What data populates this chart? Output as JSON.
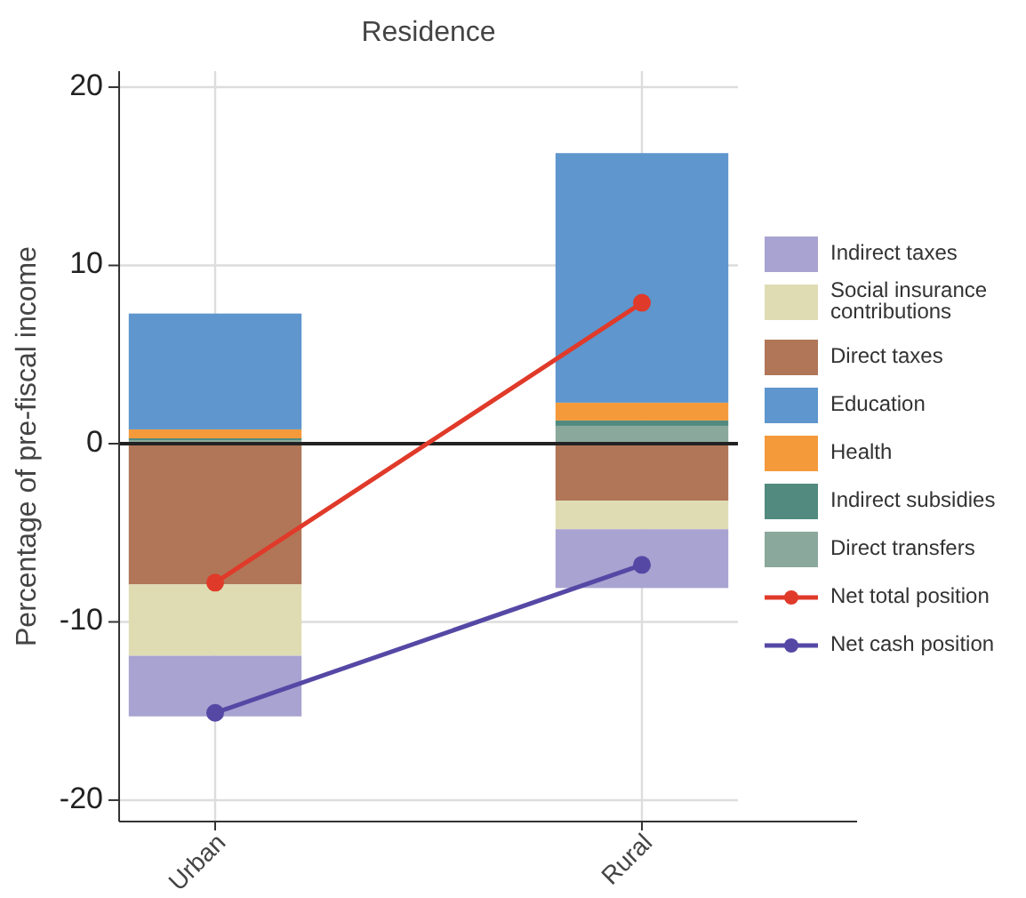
{
  "chart_data": {
    "type": "bar",
    "stacked": true,
    "title": "Residence",
    "ylabel": "Percentage of pre-fiscal income",
    "categories": [
      "Urban",
      "Rural"
    ],
    "series": [
      {
        "name": "Direct transfers",
        "color": "#8aa89b",
        "values": [
          0.2,
          1.0
        ]
      },
      {
        "name": "Indirect subsidies",
        "color": "#528a80",
        "values": [
          0.1,
          0.3
        ]
      },
      {
        "name": "Health",
        "color": "#f59a3b",
        "values": [
          0.5,
          1.0
        ]
      },
      {
        "name": "Education",
        "color": "#5e96cd",
        "values": [
          6.5,
          14.0
        ]
      },
      {
        "name": "Direct taxes",
        "color": "#b07657",
        "values": [
          -7.9,
          -3.2
        ]
      },
      {
        "name": "Social insurance contributions",
        "color": "#dfdcb3",
        "values": [
          -4.0,
          -1.6
        ]
      },
      {
        "name": "Indirect taxes",
        "color": "#a8a3d0",
        "values": [
          -3.4,
          -3.3
        ]
      },
      {
        "name": "Net total position",
        "type": "line",
        "color": "#e03a2a",
        "values": [
          -7.8,
          7.9
        ]
      },
      {
        "name": "Net cash position",
        "type": "line",
        "color": "#5548a5",
        "values": [
          -15.1,
          -6.8
        ]
      }
    ],
    "ylim": [
      -21.2,
      20.9
    ],
    "yticks": [
      -20,
      -10,
      0,
      10,
      20
    ],
    "grid": true,
    "legend": "right",
    "marker": "circle",
    "line_style": "solid",
    "ref_lines": [
      {
        "axis": "y",
        "value": 0,
        "color": "#222222"
      }
    ]
  }
}
